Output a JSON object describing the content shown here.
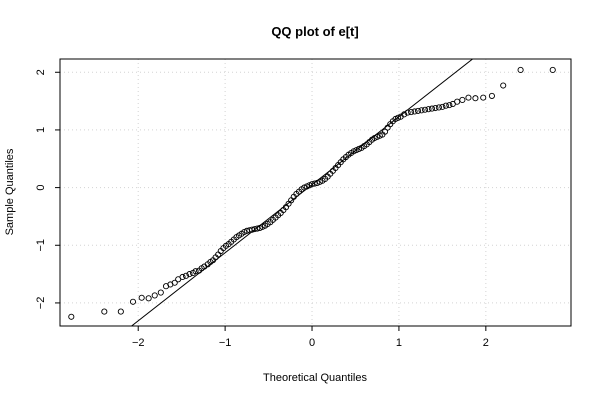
{
  "chart_data": {
    "type": "scatter",
    "title": "QQ plot of e[t]",
    "xlabel": "Theoretical Quantiles",
    "ylabel": "Sample Quantiles",
    "xlim": [
      -2.9,
      2.98
    ],
    "ylim": [
      -2.4,
      2.23
    ],
    "x_ticks": [
      -2,
      -1,
      0,
      1,
      2
    ],
    "x_tick_labels": [
      "−2",
      "−1",
      "0",
      "1",
      "2"
    ],
    "y_ticks": [
      -2,
      -1,
      0,
      1,
      2
    ],
    "y_tick_labels": [
      "−2",
      "−1",
      "0",
      "1",
      "2"
    ],
    "grid": true,
    "reference_line": {
      "slope": 1.18,
      "intercept": 0.05
    },
    "series": [
      {
        "values": [
          [
            -2.77,
            -2.24
          ],
          [
            -2.39,
            -2.15
          ],
          [
            -2.2,
            -2.15
          ],
          [
            -2.06,
            -1.98
          ],
          [
            -1.96,
            -1.91
          ],
          [
            -1.88,
            -1.92
          ],
          [
            -1.81,
            -1.87
          ],
          [
            -1.74,
            -1.82
          ],
          [
            -1.68,
            -1.71
          ],
          [
            -1.63,
            -1.68
          ],
          [
            -1.58,
            -1.65
          ],
          [
            -1.54,
            -1.59
          ],
          [
            -1.49,
            -1.55
          ],
          [
            -1.45,
            -1.53
          ],
          [
            -1.41,
            -1.5
          ],
          [
            -1.37,
            -1.48
          ],
          [
            -1.34,
            -1.45
          ],
          [
            -1.3,
            -1.44
          ],
          [
            -1.27,
            -1.4
          ],
          [
            -1.24,
            -1.37
          ],
          [
            -1.2,
            -1.33
          ],
          [
            -1.17,
            -1.29
          ],
          [
            -1.14,
            -1.26
          ],
          [
            -1.11,
            -1.21
          ],
          [
            -1.08,
            -1.16
          ],
          [
            -1.05,
            -1.1
          ],
          [
            -1.02,
            -1.05
          ],
          [
            -0.99,
            -1.01
          ],
          [
            -0.96,
            -0.98
          ],
          [
            -0.93,
            -0.94
          ],
          [
            -0.9,
            -0.9
          ],
          [
            -0.87,
            -0.86
          ],
          [
            -0.84,
            -0.83
          ],
          [
            -0.81,
            -0.8
          ],
          [
            -0.78,
            -0.77
          ],
          [
            -0.75,
            -0.75
          ],
          [
            -0.72,
            -0.74
          ],
          [
            -0.69,
            -0.73
          ],
          [
            -0.66,
            -0.72
          ],
          [
            -0.63,
            -0.71
          ],
          [
            -0.6,
            -0.7
          ],
          [
            -0.57,
            -0.68
          ],
          [
            -0.54,
            -0.66
          ],
          [
            -0.51,
            -0.63
          ],
          [
            -0.48,
            -0.6
          ],
          [
            -0.45,
            -0.56
          ],
          [
            -0.42,
            -0.52
          ],
          [
            -0.39,
            -0.48
          ],
          [
            -0.36,
            -0.44
          ],
          [
            -0.33,
            -0.39
          ],
          [
            -0.3,
            -0.34
          ],
          [
            -0.27,
            -0.28
          ],
          [
            -0.24,
            -0.22
          ],
          [
            -0.21,
            -0.16
          ],
          [
            -0.18,
            -0.11
          ],
          [
            -0.15,
            -0.07
          ],
          [
            -0.12,
            -0.03
          ],
          [
            -0.09,
            0.0
          ],
          [
            -0.06,
            0.02
          ],
          [
            -0.03,
            0.04
          ],
          [
            0.0,
            0.06
          ],
          [
            0.03,
            0.07
          ],
          [
            0.06,
            0.08
          ],
          [
            0.09,
            0.1
          ],
          [
            0.12,
            0.12
          ],
          [
            0.15,
            0.15
          ],
          [
            0.18,
            0.19
          ],
          [
            0.21,
            0.24
          ],
          [
            0.24,
            0.29
          ],
          [
            0.27,
            0.34
          ],
          [
            0.3,
            0.39
          ],
          [
            0.33,
            0.44
          ],
          [
            0.36,
            0.49
          ],
          [
            0.39,
            0.53
          ],
          [
            0.42,
            0.57
          ],
          [
            0.45,
            0.6
          ],
          [
            0.48,
            0.63
          ],
          [
            0.51,
            0.65
          ],
          [
            0.54,
            0.67
          ],
          [
            0.57,
            0.69
          ],
          [
            0.6,
            0.72
          ],
          [
            0.63,
            0.75
          ],
          [
            0.66,
            0.79
          ],
          [
            0.69,
            0.83
          ],
          [
            0.72,
            0.86
          ],
          [
            0.75,
            0.88
          ],
          [
            0.78,
            0.9
          ],
          [
            0.81,
            0.92
          ],
          [
            0.84,
            0.97
          ],
          [
            0.87,
            1.04
          ],
          [
            0.9,
            1.1
          ],
          [
            0.93,
            1.15
          ],
          [
            0.96,
            1.19
          ],
          [
            0.99,
            1.21
          ],
          [
            1.02,
            1.23
          ],
          [
            1.06,
            1.27
          ],
          [
            1.1,
            1.3
          ],
          [
            1.14,
            1.31
          ],
          [
            1.18,
            1.32
          ],
          [
            1.22,
            1.33
          ],
          [
            1.26,
            1.34
          ],
          [
            1.3,
            1.35
          ],
          [
            1.34,
            1.36
          ],
          [
            1.38,
            1.37
          ],
          [
            1.42,
            1.38
          ],
          [
            1.46,
            1.39
          ],
          [
            1.5,
            1.4
          ],
          [
            1.54,
            1.42
          ],
          [
            1.58,
            1.43
          ],
          [
            1.62,
            1.45
          ],
          [
            1.67,
            1.49
          ],
          [
            1.73,
            1.52
          ],
          [
            1.8,
            1.56
          ],
          [
            1.88,
            1.55
          ],
          [
            1.97,
            1.56
          ],
          [
            2.07,
            1.59
          ],
          [
            2.2,
            1.77
          ],
          [
            2.4,
            2.04
          ],
          [
            2.77,
            2.04
          ]
        ]
      }
    ]
  }
}
